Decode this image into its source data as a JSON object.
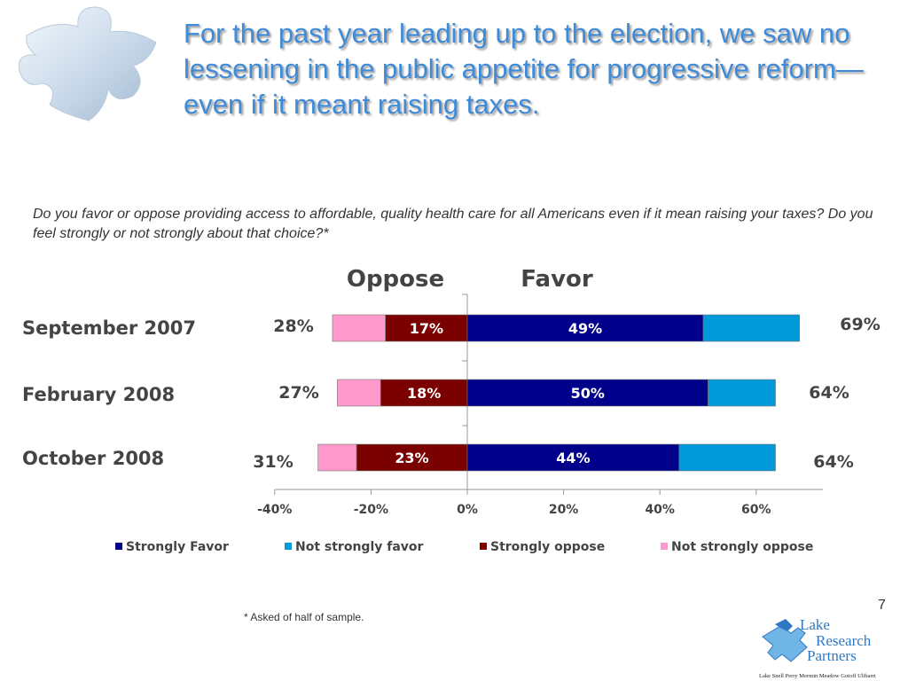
{
  "title": "For the past year leading up to the election, we saw no lessening in the public appetite for progressive reform—even if it meant raising taxes.",
  "question": "Do you favor or oppose providing access to affordable, quality health care for all Americans even if it mean raising your taxes?  Do you feel strongly or not strongly about that choice?*",
  "footnote": "* Asked of half of sample.",
  "slide_number": "7",
  "logo": {
    "line1": "Lake",
    "line2": "Research",
    "line3": "Partners",
    "tagline": "Lake   Snell   Perry   Mermin   Meadow   Gotoff   Ulibarri"
  },
  "colors": {
    "strongly_favor": "#00008b",
    "not_strongly_favor": "#0099d9",
    "strongly_oppose": "#7b0000",
    "not_strongly_oppose": "#ff99cc",
    "title": "#3f8bd7"
  },
  "chart_data": {
    "type": "bar",
    "orientation": "horizontal",
    "stacked": true,
    "header_left": "Oppose",
    "header_right": "Favor",
    "categories": [
      "September 2007",
      "February 2008",
      "October 2008"
    ],
    "series": [
      {
        "name": "Strongly Favor",
        "values": [
          49,
          50,
          44
        ]
      },
      {
        "name": "Not strongly favor",
        "values": [
          20,
          14,
          20
        ]
      },
      {
        "name": "Strongly oppose",
        "values": [
          -17,
          -18,
          -23
        ]
      },
      {
        "name": "Not strongly oppose",
        "values": [
          -11,
          -9,
          -8
        ]
      }
    ],
    "bar_labels": {
      "strongly_favor": [
        "49%",
        "50%",
        "44%"
      ],
      "strongly_oppose": [
        "17%",
        "18%",
        "23%"
      ]
    },
    "totals_oppose": [
      "28%",
      "27%",
      "31%"
    ],
    "totals_favor": [
      "69%",
      "64%",
      "64%"
    ],
    "x_ticks": [
      "-40%",
      "-20%",
      "0%",
      "20%",
      "40%",
      "60%"
    ],
    "xlim": [
      -40,
      72
    ],
    "legend": [
      "Strongly Favor",
      "Not strongly favor",
      "Strongly oppose",
      "Not strongly oppose"
    ],
    "legend_position": "bottom"
  }
}
